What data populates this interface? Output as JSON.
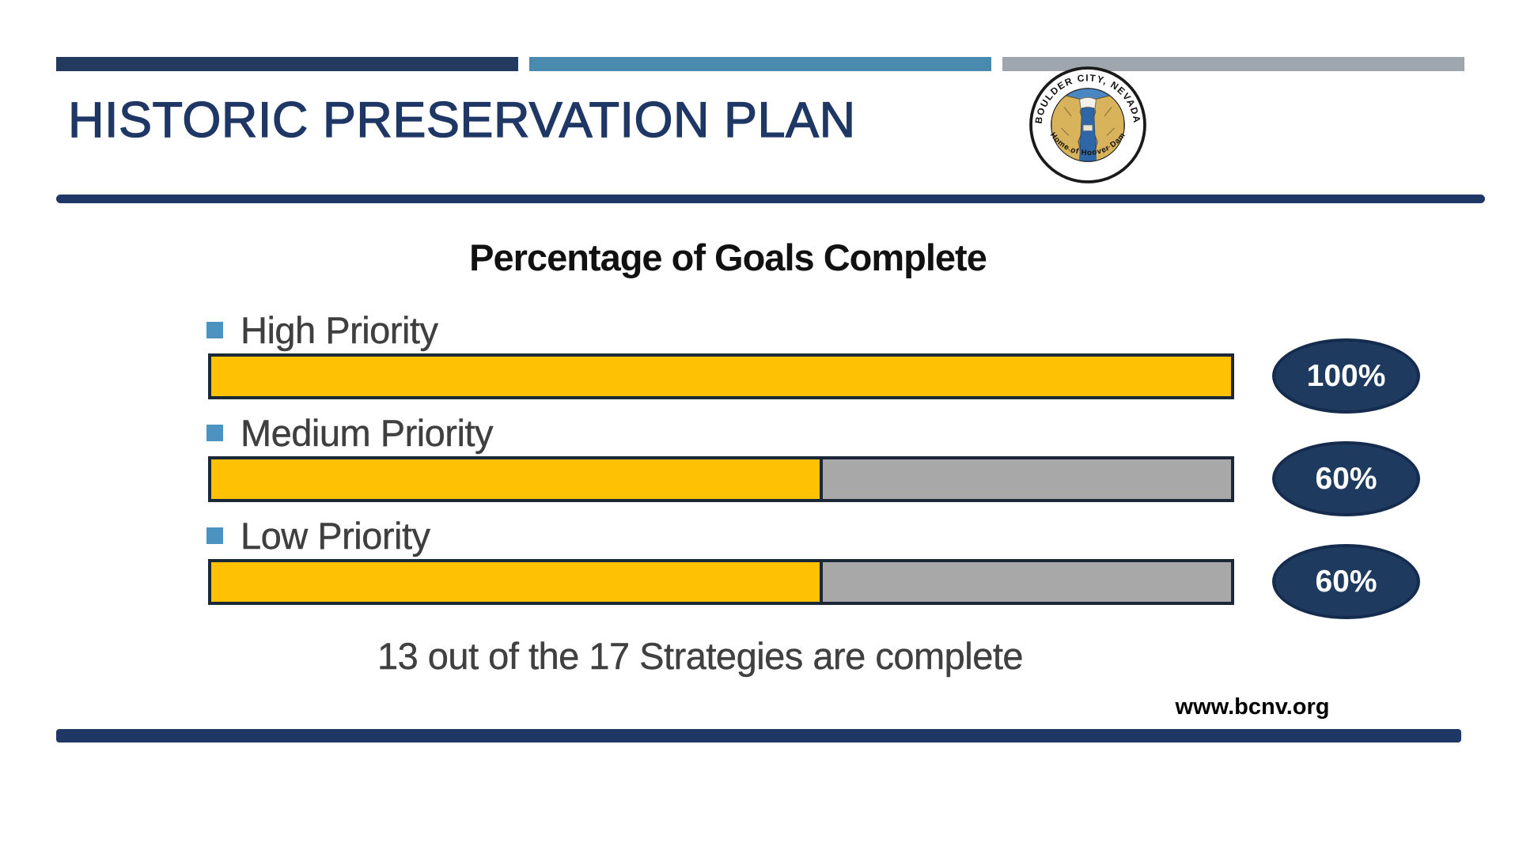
{
  "slide": {
    "title": "HISTORIC PRESERVATION PLAN",
    "footer_url": "www.bcnv.org"
  },
  "logo": {
    "name": "Boulder City, Nevada city seal",
    "text_top": "BOULDER CITY, NEVADA",
    "text_bottom": "Home of Hoover Dam"
  },
  "chart_data": {
    "type": "bar",
    "orientation": "horizontal",
    "title": "Percentage of Goals Complete",
    "categories": [
      "High Priority",
      "Medium Priority",
      "Low Priority"
    ],
    "values": [
      100,
      60,
      60
    ],
    "value_labels": [
      "100%",
      "60%",
      "60%"
    ],
    "xlim": [
      0,
      100
    ],
    "grid": false,
    "legend": false,
    "annotation": "13 out of the 17 Strategies are complete",
    "colors": {
      "complete": "#FFC103",
      "remaining": "#A8A8A8",
      "bar_border": "#1B2838",
      "badge_fill": "#1F3A5F",
      "bullet": "#4D93C1"
    }
  },
  "theme_colors": {
    "navy": "#1E3765",
    "steel_blue": "#4A8AAF",
    "gray": "#9FA6AD"
  }
}
